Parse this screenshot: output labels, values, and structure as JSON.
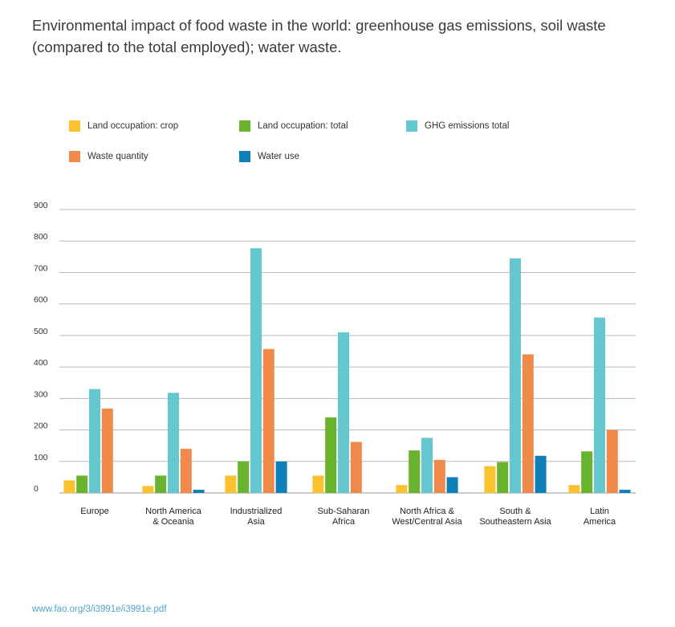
{
  "header": {
    "title": "Environmental impact of food waste in the world: greenhouse gas emissions, soil waste (compared to the total employed); water waste."
  },
  "footer": {
    "source": "www.fao.org/3/i3991e/i3991e.pdf"
  },
  "chart_data": {
    "type": "bar",
    "title": "Environmental impact of food waste in the world: greenhouse gas emissions, soil waste (compared to the total employed); water waste.",
    "xlabel": "",
    "ylabel": "",
    "ylim": [
      0,
      900
    ],
    "yticks": [
      "0",
      "100",
      "200",
      "300",
      "400",
      "500",
      "600",
      "700",
      "800",
      "900"
    ],
    "grid": true,
    "legend_position": "top",
    "categories": [
      [
        "Europe"
      ],
      [
        "North America",
        "& Oceania"
      ],
      [
        "Industrialized",
        "Asia"
      ],
      [
        "Sub-Saharan",
        "Africa"
      ],
      [
        "North Africa &",
        "West/Central Asia"
      ],
      [
        "South &",
        "Southeastern Asia"
      ],
      [
        "Latin",
        "America"
      ]
    ],
    "series": [
      {
        "name": "Land occupation: crop",
        "color": "#f9c22e",
        "values": [
          40,
          22,
          55,
          55,
          25,
          85,
          25
        ]
      },
      {
        "name": "Land occupation: total",
        "color": "#6ab42d",
        "values": [
          55,
          55,
          100,
          240,
          135,
          98,
          132
        ]
      },
      {
        "name": "GHG emissions total",
        "color": "#65c7d0",
        "values": [
          330,
          318,
          777,
          510,
          175,
          745,
          557
        ]
      },
      {
        "name": "Waste quantity",
        "color": "#f08a4b",
        "values": [
          268,
          140,
          457,
          162,
          105,
          440,
          200
        ]
      },
      {
        "name": "Water use",
        "color": "#0f7fb8",
        "values": [
          0,
          10,
          100,
          0,
          50,
          118,
          10
        ]
      }
    ]
  }
}
